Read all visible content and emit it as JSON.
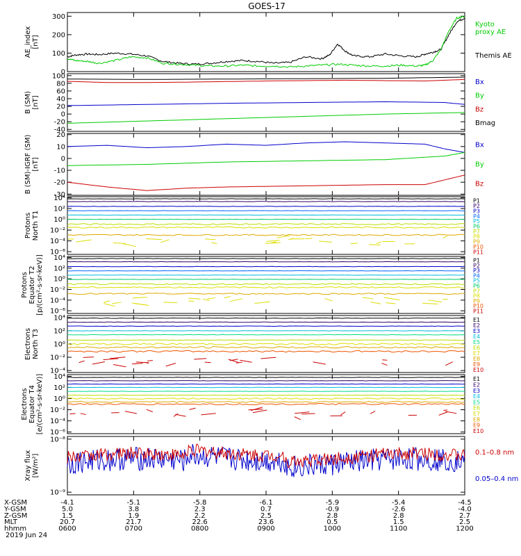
{
  "title": "GOES-17",
  "date_label": "2019 Jun 24",
  "chart_data": [
    {
      "type": "line",
      "name": "ae",
      "ylabel": [
        "AE_index",
        "[nT]"
      ],
      "ylim": [
        0,
        320
      ],
      "yticks": [
        "0",
        "100",
        "200",
        "300"
      ],
      "ytick_values": [
        0,
        100,
        200,
        300
      ],
      "legend": [
        {
          "label": "Kyoto\nproxy AE",
          "color": "#00cc00"
        },
        {
          "label": "Themis AE",
          "color": "#000000"
        }
      ],
      "series": [
        {
          "name": "Themis AE",
          "color": "#000000",
          "x": [
            0,
            0.02,
            0.05,
            0.08,
            0.12,
            0.16,
            0.2,
            0.24,
            0.28,
            0.32,
            0.36,
            0.4,
            0.44,
            0.48,
            0.52,
            0.56,
            0.6,
            0.64,
            0.66,
            0.68,
            0.7,
            0.72,
            0.76,
            0.8,
            0.84,
            0.88,
            0.9,
            0.92,
            0.94,
            0.96,
            0.98,
            1.0
          ],
          "y": [
            80,
            90,
            95,
            92,
            100,
            95,
            85,
            55,
            45,
            40,
            45,
            55,
            60,
            55,
            45,
            50,
            80,
            70,
            90,
            150,
            110,
            85,
            80,
            95,
            85,
            80,
            95,
            105,
            120,
            200,
            270,
            290
          ]
        },
        {
          "name": "Kyoto proxy AE",
          "color": "#00cc00",
          "x": [
            0,
            0.02,
            0.05,
            0.08,
            0.12,
            0.16,
            0.2,
            0.24,
            0.28,
            0.32,
            0.36,
            0.4,
            0.44,
            0.48,
            0.52,
            0.56,
            0.6,
            0.64,
            0.68,
            0.72,
            0.76,
            0.8,
            0.84,
            0.88,
            0.9,
            0.92,
            0.94,
            0.96,
            0.98,
            1.0
          ],
          "y": [
            70,
            60,
            55,
            45,
            60,
            80,
            75,
            45,
            40,
            35,
            30,
            30,
            35,
            30,
            30,
            25,
            30,
            35,
            40,
            35,
            30,
            30,
            35,
            30,
            35,
            60,
            120,
            220,
            290,
            300
          ]
        }
      ]
    },
    {
      "type": "line",
      "name": "bsm",
      "ylabel": [
        "B (SM)",
        "[nT]"
      ],
      "ylim": [
        -45,
        105
      ],
      "yticks": [
        "100",
        "80",
        "60",
        "40",
        "20",
        "0",
        "-20",
        "-40"
      ],
      "ytick_values": [
        100,
        80,
        60,
        40,
        20,
        0,
        -20,
        -40
      ],
      "legend": [
        {
          "label": "Bx",
          "color": "#0000cc"
        },
        {
          "label": "By",
          "color": "#00cc00"
        },
        {
          "label": "Bz",
          "color": "#cc0000"
        },
        {
          "label": "Bmag",
          "color": "#000000"
        }
      ],
      "series": [
        {
          "name": "Bmag",
          "color": "#000000",
          "x": [
            0,
            0.2,
            0.4,
            0.6,
            0.8,
            1.0
          ],
          "y": [
            91,
            90,
            91,
            92,
            93,
            96
          ]
        },
        {
          "name": "Bz",
          "color": "#cc0000",
          "x": [
            0,
            0.1,
            0.2,
            0.3,
            0.5,
            0.7,
            0.9,
            1.0
          ],
          "y": [
            85,
            82,
            82,
            83,
            86,
            88,
            86,
            90
          ]
        },
        {
          "name": "Bx",
          "color": "#0000cc",
          "x": [
            0,
            0.2,
            0.4,
            0.6,
            0.8,
            0.95,
            1.0
          ],
          "y": [
            22,
            25,
            28,
            30,
            32,
            30,
            25
          ]
        },
        {
          "name": "By",
          "color": "#00cc00",
          "x": [
            0,
            0.2,
            0.4,
            0.6,
            0.8,
            1.0
          ],
          "y": [
            -24,
            -18,
            -12,
            -6,
            0,
            4
          ]
        }
      ]
    },
    {
      "type": "line",
      "name": "bigrf",
      "ylabel": [
        "B (SM)-IGRF (SM)",
        "[nT]"
      ],
      "ylim": [
        -31,
        21
      ],
      "yticks": [
        "20",
        "10",
        "0",
        "-10",
        "-20",
        "-30"
      ],
      "ytick_values": [
        20,
        10,
        0,
        -10,
        -20,
        -30
      ],
      "legend": [
        {
          "label": "Bx",
          "color": "#0000cc"
        },
        {
          "label": "By",
          "color": "#00cc00"
        },
        {
          "label": "Bz",
          "color": "#cc0000"
        }
      ],
      "series": [
        {
          "name": "Bx",
          "color": "#0000cc",
          "x": [
            0,
            0.1,
            0.2,
            0.3,
            0.4,
            0.5,
            0.6,
            0.7,
            0.8,
            0.9,
            0.95,
            1.0
          ],
          "y": [
            10,
            11,
            9,
            10,
            12,
            11,
            13,
            14,
            13,
            12,
            8,
            5
          ]
        },
        {
          "name": "By",
          "color": "#00cc00",
          "x": [
            0,
            0.2,
            0.4,
            0.6,
            0.8,
            0.9,
            0.95,
            1.0
          ],
          "y": [
            -6,
            -5,
            -3,
            -2,
            -1,
            1,
            2,
            5
          ]
        },
        {
          "name": "Bz",
          "color": "#cc0000",
          "x": [
            0,
            0.1,
            0.2,
            0.3,
            0.4,
            0.6,
            0.8,
            0.9,
            0.95,
            1.0
          ],
          "y": [
            -20,
            -24,
            -27,
            -25,
            -24,
            -23,
            -22,
            -22,
            -18,
            -14
          ]
        }
      ]
    },
    {
      "type": "line",
      "name": "protons_north",
      "ylabel": [
        "Protons",
        "North T1"
      ],
      "ylog": [
        -6.5,
        4.2
      ],
      "yticks": [
        "10⁴",
        "10²",
        "10⁰",
        "10⁻²",
        "10⁻⁴",
        "10⁻⁶"
      ],
      "ytick_values": [
        4,
        2,
        0,
        -2,
        -4,
        -6
      ],
      "legend_small": [
        {
          "label": "P1",
          "color": "#000000"
        },
        {
          "label": "P2",
          "color": "#330066"
        },
        {
          "label": "P3",
          "color": "#0000cc"
        },
        {
          "label": "P4",
          "color": "#0066ff"
        },
        {
          "label": "P5",
          "color": "#00bbdd"
        },
        {
          "label": "P6",
          "color": "#00cc66"
        },
        {
          "label": "P7",
          "color": "#bbdd00"
        },
        {
          "label": "P8",
          "color": "#dddd00"
        },
        {
          "label": "P9",
          "color": "#ddaa00"
        },
        {
          "label": "P10",
          "color": "#ee5500"
        },
        {
          "label": "P11",
          "color": "#cc0000"
        }
      ],
      "levels": [
        3.8,
        3.3,
        2.4,
        1.6,
        0.8,
        0.0,
        -0.9,
        -1.5,
        -2.9
      ],
      "level_colors": [
        "#000000",
        "#330066",
        "#0000cc",
        "#0066ff",
        "#00bbdd",
        "#00cc66",
        "#bbdd00",
        "#dddd00",
        "#ddaa00"
      ]
    },
    {
      "type": "line",
      "name": "protons_equator",
      "ylabel": [
        "Protons",
        "Equator T2",
        "[p/(cm²-s-sr-keV)]"
      ],
      "ylog": [
        -6.5,
        4.2
      ],
      "yticks": [
        "10⁴",
        "10²",
        "10⁰",
        "10⁻²",
        "10⁻⁴",
        "10⁻⁶"
      ],
      "ytick_values": [
        4,
        2,
        0,
        -2,
        -4,
        -6
      ],
      "legend_small": [
        {
          "label": "P1",
          "color": "#000000"
        },
        {
          "label": "P2",
          "color": "#330066"
        },
        {
          "label": "P3",
          "color": "#0000cc"
        },
        {
          "label": "P4",
          "color": "#0066ff"
        },
        {
          "label": "P5",
          "color": "#00bbdd"
        },
        {
          "label": "P6",
          "color": "#00cc66"
        },
        {
          "label": "P7",
          "color": "#bbdd00"
        },
        {
          "label": "P8",
          "color": "#dddd00"
        },
        {
          "label": "P9",
          "color": "#ddaa00"
        },
        {
          "label": "P10",
          "color": "#ee5500"
        },
        {
          "label": "P11",
          "color": "#cc0000"
        }
      ],
      "levels": [
        3.8,
        3.2,
        2.3,
        1.5,
        0.7,
        -0.1,
        -1.0,
        -1.6,
        -2.8
      ],
      "level_colors": [
        "#000000",
        "#330066",
        "#0000cc",
        "#0066ff",
        "#00bbdd",
        "#00cc66",
        "#bbdd00",
        "#dddd00",
        "#ddaa00"
      ]
    },
    {
      "type": "line",
      "name": "electrons_north",
      "ylabel": [
        "Electrons",
        "North T3"
      ],
      "ylog": [
        -4.3,
        4.3
      ],
      "yticks": [
        "10⁴",
        "10²",
        "10⁰",
        "10⁻²",
        "10⁻⁴"
      ],
      "ytick_values": [
        4,
        2,
        0,
        -2,
        -4
      ],
      "legend_small": [
        {
          "label": "E1",
          "color": "#000000"
        },
        {
          "label": "E2",
          "color": "#330066"
        },
        {
          "label": "E3",
          "color": "#0000cc"
        },
        {
          "label": "E4",
          "color": "#00bbdd"
        },
        {
          "label": "E5",
          "color": "#00dd88"
        },
        {
          "label": "E6",
          "color": "#bbdd00"
        },
        {
          "label": "E7",
          "color": "#dddd00"
        },
        {
          "label": "E8",
          "color": "#ddaa00"
        },
        {
          "label": "E9",
          "color": "#ee5500"
        },
        {
          "label": "E10",
          "color": "#cc0000"
        }
      ],
      "levels": [
        3.9,
        3.3,
        2.7,
        2.0,
        1.4,
        0.6,
        0.0,
        -0.5,
        -1.1
      ],
      "level_colors": [
        "#000000",
        "#330066",
        "#0000cc",
        "#00bbdd",
        "#00dd88",
        "#bbdd00",
        "#dddd00",
        "#ddaa00",
        "#ee5500"
      ]
    },
    {
      "type": "line",
      "name": "electrons_equator",
      "ylabel": [
        "Electrons",
        "Equator T4",
        "[e/(cm²-s-sr-keV)]"
      ],
      "ylog": [
        -6.3,
        4.3
      ],
      "yticks": [
        "10⁴",
        "10²",
        "10⁰",
        "10⁻²",
        "10⁻⁴",
        "10⁻⁶"
      ],
      "ytick_values": [
        4,
        2,
        0,
        -2,
        -4,
        -6
      ],
      "legend_small": [
        {
          "label": "E1",
          "color": "#000000"
        },
        {
          "label": "E2",
          "color": "#330066"
        },
        {
          "label": "E3",
          "color": "#0000cc"
        },
        {
          "label": "E4",
          "color": "#00bbdd"
        },
        {
          "label": "E5",
          "color": "#00dd88"
        },
        {
          "label": "E6",
          "color": "#bbdd00"
        },
        {
          "label": "E7",
          "color": "#dddd00"
        },
        {
          "label": "E8",
          "color": "#ddaa00"
        },
        {
          "label": "E9",
          "color": "#ee5500"
        },
        {
          "label": "E10",
          "color": "#cc0000"
        }
      ],
      "levels": [
        3.8,
        3.2,
        2.6,
        2.0,
        1.3,
        0.6,
        0.0,
        -0.6,
        -1.0
      ],
      "level_colors": [
        "#000000",
        "#330066",
        "#0000cc",
        "#00bbdd",
        "#00dd88",
        "#bbdd00",
        "#dddd00",
        "#ddaa00",
        "#ee5500"
      ]
    },
    {
      "type": "line",
      "name": "xray",
      "ylabel": [
        "Xray flux",
        "[W/m²]"
      ],
      "ylog": [
        -9.05,
        -7.95
      ],
      "yticks": [
        "10⁻⁸",
        "10⁻⁹"
      ],
      "ytick_values": [
        -8,
        -9
      ],
      "legend": [
        {
          "label": "0.1–0.8 nm",
          "color": "#cc0000"
        },
        {
          "label": "0.05–0.4 nm",
          "color": "#0000cc"
        }
      ]
    }
  ],
  "xaxis": {
    "rows": [
      {
        "label": "X-GSM",
        "values": [
          "-4.1",
          "-5.1",
          "-5.8",
          "-6.1",
          "-5.9",
          "-5.4",
          "-4.5"
        ]
      },
      {
        "label": "Y-GSM",
        "values": [
          "5.0",
          "3.8",
          "2.3",
          "0.7",
          "-0.9",
          "-2.6",
          "-4.0"
        ]
      },
      {
        "label": "Z-GSM",
        "values": [
          "1.5",
          "1.9",
          "2.2",
          "2.5",
          "2.8",
          "2.8",
          "2.7"
        ]
      },
      {
        "label": "MLT",
        "values": [
          "20.7",
          "21.7",
          "22.6",
          "23.6",
          "0.5",
          "1.5",
          "2.5"
        ]
      },
      {
        "label": "hhmm",
        "values": [
          "0600",
          "0700",
          "0800",
          "0900",
          "1000",
          "1100",
          "1200"
        ]
      }
    ]
  }
}
